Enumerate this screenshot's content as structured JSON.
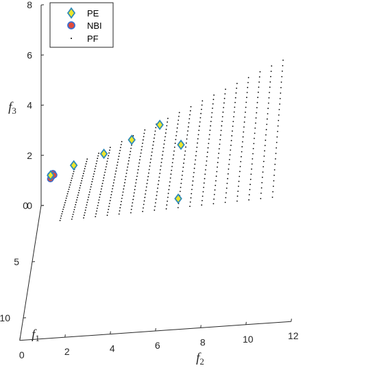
{
  "chart_data": {
    "type": "scatter",
    "projection": "3d",
    "axes": {
      "f1": {
        "label": "f",
        "sub": "1",
        "ticks": [
          0,
          5,
          10
        ],
        "range": [
          0,
          12
        ]
      },
      "f2": {
        "label": "f",
        "sub": "2",
        "ticks": [
          0,
          2,
          4,
          6,
          8,
          10,
          12
        ],
        "range": [
          0,
          12
        ]
      },
      "f3": {
        "label": "f",
        "sub": "3",
        "ticks": [
          0,
          2,
          4,
          6,
          8
        ],
        "range": [
          0,
          8
        ]
      }
    },
    "legend": {
      "position": "top-left",
      "entries": [
        {
          "name": "PE",
          "marker": "diamond",
          "fill": "#EDE62A",
          "stroke": "#2E8BB8"
        },
        {
          "name": "NBI",
          "marker": "circle",
          "fill": "#E04A3C",
          "stroke": "#3A6FD0"
        },
        {
          "name": "PF",
          "marker": "dot",
          "fill": "#000000",
          "stroke": "#000000"
        }
      ]
    },
    "series": [
      {
        "name": "PE",
        "points": [
          [
            2.3,
            0.6,
            2.2
          ],
          [
            2.0,
            1.6,
            2.4
          ],
          [
            1.6,
            2.9,
            2.6
          ],
          [
            1.2,
            4.1,
            2.9
          ],
          [
            0.7,
            5.3,
            3.2
          ],
          [
            1.5,
            6.3,
            2.7
          ],
          [
            4.3,
            6.4,
            1.8
          ]
        ]
      },
      {
        "name": "NBI",
        "points": [
          [
            2.3,
            0.6,
            2.2
          ],
          [
            2.35,
            0.65,
            2.15
          ],
          [
            2.25,
            0.7,
            2.25
          ],
          [
            2.4,
            0.6,
            2.1
          ],
          [
            2.3,
            0.75,
            2.2
          ]
        ]
      },
      {
        "name": "PF",
        "surface": "pareto-front",
        "u_steps": 19,
        "v_steps": 26
      }
    ]
  }
}
